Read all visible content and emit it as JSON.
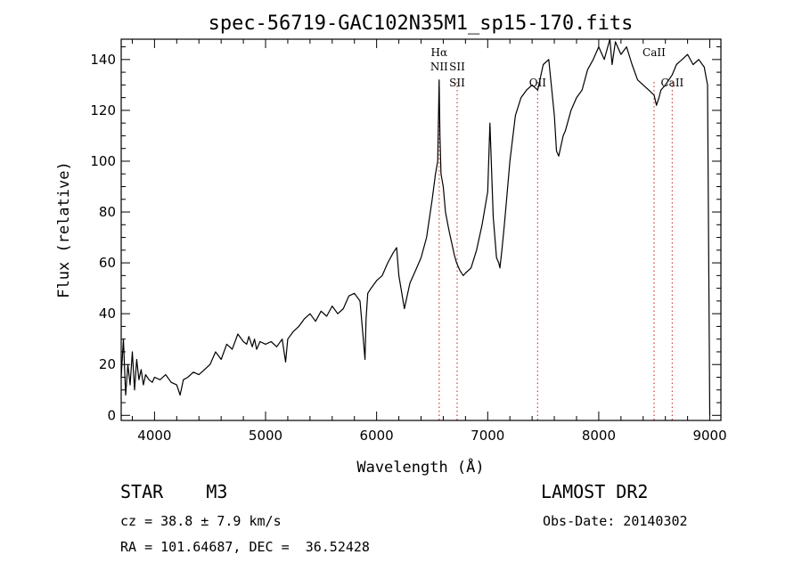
{
  "chart_data": {
    "type": "line",
    "title": "spec-56719-GAC102N35M1_sp15-170.fits",
    "xlabel": "Wavelength (Å)",
    "ylabel": "Flux (relative)",
    "xlim": [
      3700,
      9100
    ],
    "ylim": [
      -2,
      148
    ],
    "xticks": [
      4000,
      5000,
      6000,
      7000,
      8000,
      9000
    ],
    "yticks": [
      0,
      20,
      40,
      60,
      80,
      100,
      120,
      140
    ],
    "series": [
      {
        "name": "flux",
        "x": [
          3700,
          3720,
          3740,
          3760,
          3780,
          3800,
          3820,
          3840,
          3860,
          3880,
          3900,
          3920,
          3950,
          3980,
          4000,
          4050,
          4100,
          4150,
          4200,
          4230,
          4260,
          4300,
          4350,
          4400,
          4450,
          4500,
          4550,
          4600,
          4650,
          4700,
          4750,
          4800,
          4830,
          4850,
          4880,
          4900,
          4920,
          4950,
          5000,
          5050,
          5100,
          5150,
          5180,
          5200,
          5250,
          5300,
          5350,
          5400,
          5450,
          5500,
          5550,
          5600,
          5650,
          5700,
          5750,
          5800,
          5850,
          5880,
          5895,
          5905,
          5920,
          5950,
          6000,
          6050,
          6100,
          6150,
          6180,
          6200,
          6250,
          6300,
          6350,
          6400,
          6450,
          6500,
          6530,
          6550,
          6563,
          6570,
          6580,
          6600,
          6620,
          6650,
          6700,
          6720,
          6750,
          6780,
          6800,
          6850,
          6900,
          6950,
          7000,
          7020,
          7050,
          7080,
          7100,
          7110,
          7130,
          7150,
          7170,
          7200,
          7250,
          7300,
          7350,
          7400,
          7450,
          7500,
          7550,
          7600,
          7620,
          7640,
          7660,
          7680,
          7700,
          7750,
          7800,
          7850,
          7900,
          7950,
          8000,
          8050,
          8100,
          8120,
          8150,
          8200,
          8250,
          8300,
          8350,
          8400,
          8450,
          8498,
          8520,
          8542,
          8560,
          8600,
          8662,
          8700,
          8750,
          8800,
          8850,
          8900,
          8950,
          8980,
          9000
        ],
        "y": [
          15,
          30,
          8,
          20,
          12,
          25,
          10,
          22,
          14,
          18,
          12,
          16,
          14,
          13,
          15,
          14,
          16,
          13,
          12,
          8,
          14,
          15,
          17,
          16,
          18,
          20,
          25,
          22,
          28,
          26,
          32,
          29,
          28,
          31,
          27,
          30,
          26,
          29,
          28,
          29,
          27,
          30,
          21,
          30,
          33,
          35,
          38,
          40,
          37,
          41,
          39,
          43,
          40,
          42,
          47,
          48,
          45,
          30,
          22,
          38,
          48,
          50,
          53,
          55,
          60,
          64,
          66,
          55,
          42,
          52,
          57,
          62,
          70,
          85,
          95,
          100,
          132,
          110,
          95,
          90,
          80,
          73,
          63,
          60,
          57,
          55,
          56,
          58,
          65,
          75,
          88,
          115,
          78,
          62,
          60,
          58,
          66,
          75,
          85,
          100,
          118,
          125,
          128,
          130,
          128,
          138,
          140,
          118,
          104,
          102,
          106,
          110,
          112,
          120,
          125,
          128,
          136,
          140,
          145,
          140,
          148,
          138,
          147,
          142,
          145,
          138,
          132,
          130,
          128,
          126,
          122,
          125,
          128,
          130,
          134,
          138,
          140,
          142,
          138,
          140,
          137,
          130,
          0
        ]
      }
    ],
    "lines": [
      {
        "x": 6563,
        "labels": [
          "Hα",
          "NII"
        ],
        "rows": [
          0,
          1
        ]
      },
      {
        "x": 6725,
        "labels": [
          "SII",
          "SII"
        ],
        "rows": [
          1,
          2
        ]
      },
      {
        "x": 7450,
        "labels": [
          "OII"
        ],
        "rows": [
          2
        ]
      },
      {
        "x": 8498,
        "labels": [
          "CaII"
        ],
        "rows": [
          0
        ]
      },
      {
        "x": 8662,
        "labels": [
          "CaII"
        ],
        "rows": [
          2
        ]
      }
    ],
    "line_color": "#d84a4a",
    "spectrum_color": "#000000"
  },
  "info": {
    "class_line": "STAR    M3",
    "survey": "LAMOST DR2",
    "cz": "cz = 38.8 ± 7.9 km/s",
    "obs_date": "Obs-Date: 20140302",
    "radec": "RA = 101.64687, DEC =  36.52428"
  }
}
